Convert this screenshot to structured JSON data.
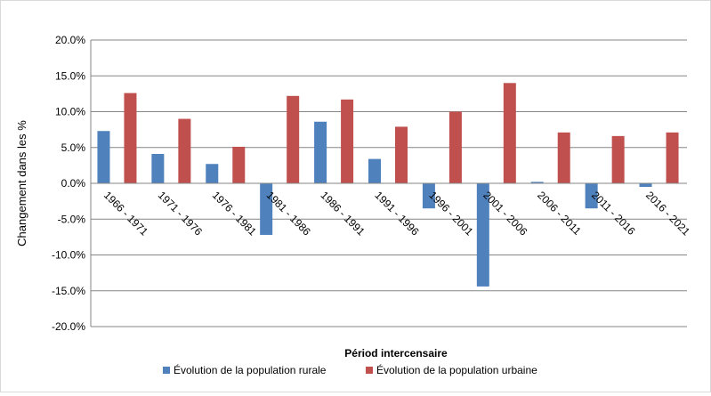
{
  "chart_data": {
    "type": "bar",
    "categories": [
      "1966 - 1971",
      "1971 - 1976",
      "1976 - 1981",
      "1981 - 1986",
      "1986 - 1991",
      "1991 - 1996",
      "1996 - 2001",
      "2001 - 2006",
      "2006 - 2011",
      "2011 - 2016",
      "2016 - 2021"
    ],
    "series": [
      {
        "name": "Évolution de la population rurale",
        "color": "#4f81bd",
        "values": [
          7.3,
          4.1,
          2.7,
          -7.2,
          8.6,
          3.4,
          -3.5,
          -14.4,
          0.2,
          -3.5,
          -0.5
        ]
      },
      {
        "name": "Évolution de la population urbaine",
        "color": "#c0504d",
        "values": [
          12.6,
          9.0,
          5.1,
          12.2,
          11.7,
          7.9,
          10.0,
          14.0,
          7.1,
          6.6,
          7.1
        ]
      }
    ],
    "yticks": [
      "20.0%",
      "15.0%",
      "10.0%",
      "5.0%",
      "0.0%",
      "-5.0%",
      "-10.0%",
      "-15.0%",
      "-20.0%"
    ],
    "ylim": [
      -20,
      20
    ],
    "xlabel": "Périod intercensaire",
    "ylabel": "Changement dans les %",
    "grid": true,
    "legend_position": "bottom"
  }
}
